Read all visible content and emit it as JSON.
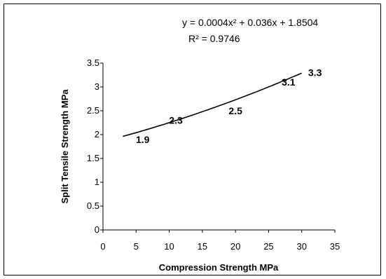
{
  "chart_data": {
    "type": "line",
    "title": "",
    "xlabel": "Compression Strength MPa",
    "ylabel": "Split Tensile Strength MPa",
    "xlim": [
      0,
      35
    ],
    "ylim": [
      0,
      3.5
    ],
    "xticks": [
      "0",
      "5",
      "10",
      "15",
      "20",
      "25",
      "30",
      "35"
    ],
    "yticks": [
      "0",
      "0.5",
      "1",
      "1.5",
      "2",
      "2.5",
      "3",
      "3.5"
    ],
    "grid": false,
    "trendline": {
      "equation": "y = 0.0004x² + 0.036x + 1.8504",
      "r_squared": "R² = 0.9746",
      "coefficients": {
        "a": 0.0004,
        "b": 0.036,
        "c": 1.8504
      },
      "x_range": [
        3,
        30
      ]
    },
    "data_labels": [
      {
        "text": "1.9",
        "x": 6,
        "y": 1.9
      },
      {
        "text": "2.3",
        "x": 11,
        "y": 2.3
      },
      {
        "text": "2.5",
        "x": 20,
        "y": 2.5
      },
      {
        "text": "3.1",
        "x": 28,
        "y": 3.1
      },
      {
        "text": "3.3",
        "x": 32,
        "y": 3.3
      }
    ]
  }
}
